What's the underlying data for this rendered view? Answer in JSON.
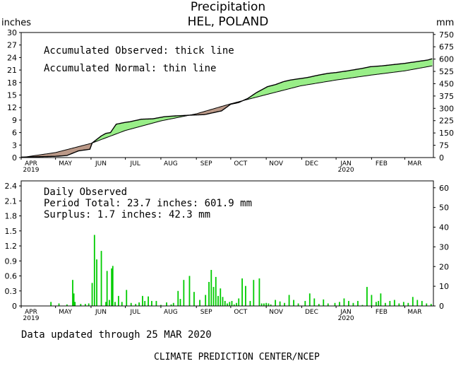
{
  "title": "Precipitation",
  "subtitle": "HEL, POLAND",
  "unit_left": "inches",
  "unit_right": "mm",
  "footer_updated": "Data updated through 25 MAR 2020",
  "footer_credit": "CLIMATE PREDICTION CENTER/NCEP",
  "colors": {
    "surplus": "#99ee88",
    "deficit": "#bb9988",
    "bars": "#00cc00",
    "frame": "#000000"
  },
  "chart_data": [
    {
      "type": "area",
      "notes": [
        "Accumulated Observed: thick line",
        "Accumulated Normal: thin line"
      ],
      "x_ticks": [
        "APR",
        "MAY",
        "JUN",
        "JUL",
        "AUG",
        "SEP",
        "OCT",
        "NOV",
        "DEC",
        "JAN",
        "FEB",
        "MAR"
      ],
      "x_year_labels": [
        {
          "under": "APR",
          "text": "2019"
        },
        {
          "under": "JAN",
          "text": "2020"
        }
      ],
      "y_left_ticks": [
        "0",
        "3",
        "6",
        "9",
        "12",
        "15",
        "18",
        "21",
        "24",
        "27",
        "30"
      ],
      "y_right_ticks": [
        "0",
        "75",
        "150",
        "225",
        "300",
        "375",
        "450",
        "525",
        "600",
        "675",
        "750"
      ],
      "ylim_left": [
        0,
        30
      ],
      "x_unit": "day of period (0 = 1 APR 2019)",
      "series": [
        {
          "name": "Accumulated Observed",
          "x": [
            0,
            14,
            30,
            40,
            50,
            60,
            62,
            70,
            74,
            78,
            83,
            90,
            95,
            105,
            115,
            125,
            135,
            150,
            160,
            175,
            183,
            190,
            198,
            205,
            215,
            222,
            229,
            235,
            240,
            250,
            260,
            268,
            275,
            285,
            298,
            305,
            315,
            325,
            335,
            345,
            355,
            359
          ],
          "values": [
            0.1,
            0.2,
            0.3,
            0.5,
            1.6,
            2.0,
            3.5,
            5.2,
            5.8,
            6.0,
            8.0,
            8.4,
            8.6,
            9.2,
            9.3,
            9.8,
            10.0,
            10.2,
            10.3,
            11.2,
            12.8,
            13.2,
            14.2,
            15.5,
            17.0,
            17.5,
            18.2,
            18.6,
            18.8,
            19.2,
            19.8,
            20.2,
            20.4,
            20.8,
            21.4,
            21.8,
            22.0,
            22.3,
            22.6,
            23.0,
            23.4,
            23.7
          ]
        },
        {
          "name": "Accumulated Normal",
          "x": [
            0,
            30,
            61,
            91,
            122,
            153,
            183,
            214,
            244,
            275,
            306,
            335,
            359
          ],
          "values": [
            0.0,
            1.2,
            3.4,
            6.5,
            8.8,
            10.5,
            12.9,
            15.1,
            17.2,
            18.6,
            19.8,
            20.8,
            22.0
          ]
        }
      ]
    },
    {
      "type": "bar",
      "notes": [
        "Daily Observed",
        "Period Total:   23.7 inches:   601.9 mm",
        "Surplus:     1.7 inches:   42.3 mm"
      ],
      "x_ticks": [
        "APR",
        "MAY",
        "JUN",
        "JUL",
        "AUG",
        "SEP",
        "OCT",
        "NOV",
        "DEC",
        "JAN",
        "FEB",
        "MAR"
      ],
      "x_year_labels": [
        {
          "under": "APR",
          "text": "2019"
        },
        {
          "under": "JAN",
          "text": "2020"
        }
      ],
      "y_left_ticks": [
        "0",
        "0.3",
        "0.6",
        "0.9",
        "1.2",
        "1.5",
        "1.8",
        "2.1",
        "2.4"
      ],
      "y_right_ticks": [
        "0",
        "10",
        "20",
        "30",
        "40",
        "50",
        "60"
      ],
      "ylim_left": [
        0,
        2.5
      ],
      "x_unit": "day of period (0 = 1 APR 2019)",
      "series": [
        {
          "name": "Daily Observed",
          "x": [
            26,
            33,
            40,
            45,
            46,
            47,
            52,
            56,
            59,
            62,
            64,
            66,
            70,
            74,
            75,
            77,
            79,
            80,
            82,
            85,
            88,
            92,
            96,
            100,
            103,
            106,
            108,
            111,
            114,
            118,
            122,
            127,
            131,
            133,
            137,
            139,
            142,
            147,
            151,
            156,
            161,
            164,
            166,
            168,
            170,
            172,
            174,
            176,
            178,
            180,
            182,
            184,
            186,
            188,
            190,
            193,
            196,
            200,
            203,
            208,
            210,
            212,
            214,
            216,
            218,
            222,
            226,
            230,
            234,
            238,
            242,
            248,
            252,
            256,
            260,
            264,
            268,
            274,
            278,
            282,
            286,
            290,
            294,
            298,
            302,
            306,
            310,
            312,
            314,
            318,
            322,
            326,
            330,
            334,
            338,
            342,
            346,
            350,
            354,
            358
          ],
          "values": [
            0.08,
            0.05,
            0.03,
            0.52,
            0.25,
            0.08,
            0.04,
            0.04,
            0.05,
            0.46,
            1.42,
            0.93,
            1.1,
            0.08,
            0.7,
            0.12,
            0.75,
            0.8,
            0.08,
            0.2,
            0.08,
            0.32,
            0.06,
            0.04,
            0.07,
            0.2,
            0.1,
            0.19,
            0.1,
            0.1,
            0.02,
            0.07,
            0.03,
            0.06,
            0.3,
            0.14,
            0.52,
            0.6,
            0.28,
            0.12,
            0.22,
            0.48,
            0.72,
            0.38,
            0.58,
            0.2,
            0.35,
            0.18,
            0.1,
            0.05,
            0.08,
            0.1,
            0.03,
            0.06,
            0.15,
            0.55,
            0.4,
            0.1,
            0.52,
            0.55,
            0.05,
            0.05,
            0.06,
            0.05,
            0.03,
            0.12,
            0.09,
            0.06,
            0.22,
            0.12,
            0.05,
            0.1,
            0.25,
            0.15,
            0.04,
            0.13,
            0.05,
            0.06,
            0.08,
            0.15,
            0.1,
            0.06,
            0.1,
            0.02,
            0.38,
            0.22,
            0.08,
            0.1,
            0.25,
            0.06,
            0.1,
            0.12,
            0.05,
            0.08,
            0.06,
            0.18,
            0.12,
            0.1,
            0.05,
            0.04
          ]
        }
      ]
    }
  ]
}
